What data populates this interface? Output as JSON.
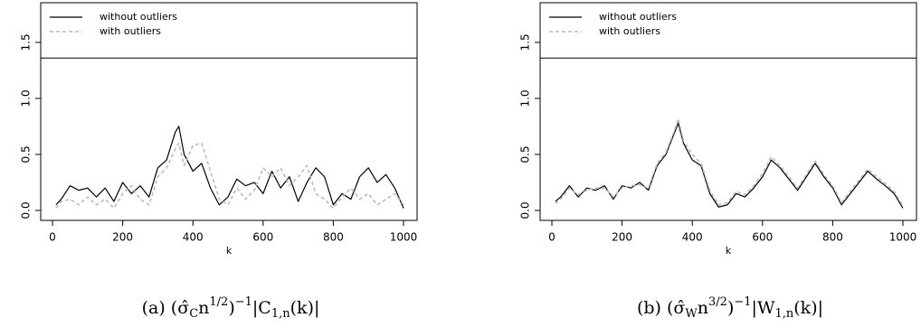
{
  "chart_data": [
    {
      "type": "line",
      "xlabel": "k",
      "x": [
        10,
        25,
        50,
        75,
        100,
        125,
        150,
        175,
        200,
        225,
        250,
        275,
        300,
        325,
        350,
        360,
        375,
        400,
        425,
        450,
        475,
        500,
        525,
        550,
        575,
        600,
        625,
        650,
        675,
        700,
        725,
        750,
        775,
        800,
        825,
        850,
        875,
        900,
        925,
        950,
        975,
        1000
      ],
      "series": [
        {
          "name": "without outliers",
          "color": "#000000",
          "dash": false,
          "values": [
            0.05,
            0.1,
            0.22,
            0.18,
            0.2,
            0.12,
            0.2,
            0.08,
            0.25,
            0.15,
            0.22,
            0.12,
            0.38,
            0.45,
            0.7,
            0.75,
            0.5,
            0.35,
            0.42,
            0.2,
            0.05,
            0.12,
            0.28,
            0.22,
            0.25,
            0.15,
            0.35,
            0.2,
            0.3,
            0.08,
            0.25,
            0.38,
            0.3,
            0.05,
            0.15,
            0.1,
            0.3,
            0.38,
            0.25,
            0.32,
            0.2,
            0.02
          ]
        },
        {
          "name": "with outliers",
          "color": "#bbbbbb",
          "dash": true,
          "values": [
            0.02,
            0.08,
            0.1,
            0.05,
            0.12,
            0.05,
            0.1,
            0.02,
            0.15,
            0.22,
            0.1,
            0.05,
            0.3,
            0.38,
            0.55,
            0.6,
            0.4,
            0.58,
            0.6,
            0.35,
            0.1,
            0.05,
            0.2,
            0.1,
            0.18,
            0.38,
            0.3,
            0.38,
            0.22,
            0.3,
            0.4,
            0.15,
            0.1,
            0.02,
            0.12,
            0.2,
            0.1,
            0.15,
            0.05,
            0.1,
            0.15,
            0.05
          ]
        }
      ],
      "threshold": 1.36,
      "xlim": [
        -33.5,
        1038.6
      ],
      "ylim": [
        -0.089,
        1.854
      ],
      "xticks": [
        0,
        200,
        400,
        600,
        800,
        1000
      ],
      "yticks": [
        {
          "value": 0,
          "label": "0.0"
        },
        {
          "value": 0.5,
          "label": "0.5"
        },
        {
          "value": 1,
          "label": "1.0"
        },
        {
          "value": 1.5,
          "label": "1.5"
        }
      ],
      "legend": "top-left",
      "caption": [
        [
          "(a) (σ̂",
          ""
        ],
        [
          "C",
          "sub"
        ],
        [
          "n",
          ""
        ],
        [
          "1/2",
          "sup"
        ],
        [
          ")",
          ""
        ],
        [
          "−1",
          "sup"
        ],
        [
          "|C",
          ""
        ],
        [
          "1,n",
          "sub"
        ],
        [
          "(k)|",
          ""
        ]
      ]
    },
    {
      "type": "line",
      "xlabel": "k",
      "x": [
        10,
        25,
        50,
        75,
        100,
        125,
        150,
        175,
        200,
        225,
        250,
        275,
        300,
        325,
        350,
        360,
        375,
        400,
        425,
        450,
        475,
        500,
        525,
        550,
        575,
        600,
        625,
        650,
        675,
        700,
        725,
        750,
        775,
        800,
        825,
        850,
        875,
        900,
        925,
        950,
        975,
        1000
      ],
      "series": [
        {
          "name": "without outliers",
          "color": "#000000",
          "dash": false,
          "values": [
            0.08,
            0.12,
            0.22,
            0.12,
            0.2,
            0.18,
            0.22,
            0.1,
            0.22,
            0.2,
            0.25,
            0.18,
            0.4,
            0.5,
            0.7,
            0.78,
            0.6,
            0.45,
            0.4,
            0.15,
            0.03,
            0.05,
            0.15,
            0.12,
            0.2,
            0.3,
            0.45,
            0.38,
            0.28,
            0.18,
            0.3,
            0.42,
            0.3,
            0.2,
            0.05,
            0.15,
            0.25,
            0.35,
            0.28,
            0.22,
            0.15,
            0.02
          ]
        },
        {
          "name": "with outliers",
          "color": "#bbbbbb",
          "dash": true,
          "values": [
            0.06,
            0.1,
            0.2,
            0.14,
            0.18,
            0.2,
            0.2,
            0.12,
            0.2,
            0.22,
            0.23,
            0.2,
            0.42,
            0.52,
            0.72,
            0.82,
            0.62,
            0.5,
            0.42,
            0.18,
            0.05,
            0.07,
            0.17,
            0.14,
            0.22,
            0.33,
            0.48,
            0.4,
            0.3,
            0.2,
            0.32,
            0.44,
            0.32,
            0.22,
            0.07,
            0.17,
            0.27,
            0.37,
            0.3,
            0.24,
            0.17,
            0.04
          ]
        }
      ],
      "threshold": 1.36,
      "xlim": [
        -33.5,
        1038.6
      ],
      "ylim": [
        -0.089,
        1.854
      ],
      "xticks": [
        0,
        200,
        400,
        600,
        800,
        1000
      ],
      "yticks": [
        {
          "value": 0,
          "label": "0.0"
        },
        {
          "value": 0.5,
          "label": "0.5"
        },
        {
          "value": 1,
          "label": "1.0"
        },
        {
          "value": 1.5,
          "label": "1.5"
        }
      ],
      "legend": "top-left",
      "caption": [
        [
          "(b) (σ̂",
          ""
        ],
        [
          "W",
          "sub"
        ],
        [
          "n",
          ""
        ],
        [
          "3/2",
          "sup"
        ],
        [
          ")",
          ""
        ],
        [
          "−1",
          "sup"
        ],
        [
          "|W",
          ""
        ],
        [
          "1,n",
          "sub"
        ],
        [
          "(k)|",
          ""
        ]
      ]
    }
  ]
}
